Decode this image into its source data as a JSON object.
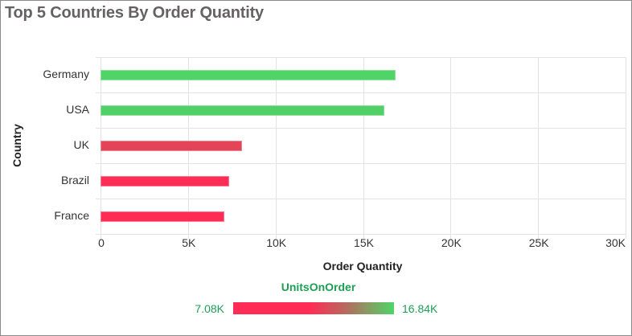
{
  "chart_data": {
    "type": "bar",
    "orientation": "horizontal",
    "title": "Top 5 Countries By Order Quantity",
    "xlabel": "Order Quantity",
    "ylabel": "Country",
    "categories": [
      "Germany",
      "USA",
      "UK",
      "Brazil",
      "France"
    ],
    "values": [
      16840,
      16200,
      8100,
      7350,
      7080
    ],
    "xlim": [
      0,
      30000
    ],
    "x_ticks": [
      "0",
      "5K",
      "10K",
      "15K",
      "20K",
      "25K",
      "30K"
    ],
    "grid": true,
    "color_by": "UnitsOnOrder",
    "bar_colors": [
      "#50d468",
      "#52cf66",
      "#e44458",
      "#fe2d55",
      "#fe2c55"
    ],
    "legend": {
      "type": "gradient",
      "title": "UnitsOnOrder",
      "min_label": "7.08K",
      "max_label": "16.84K",
      "min_color": "#ff2d55",
      "max_color": "#4fd568",
      "position": "bottom"
    }
  },
  "colors": {
    "title": "#666264",
    "legend_text": "#1e9e54",
    "grid": "#e3e3e3"
  }
}
